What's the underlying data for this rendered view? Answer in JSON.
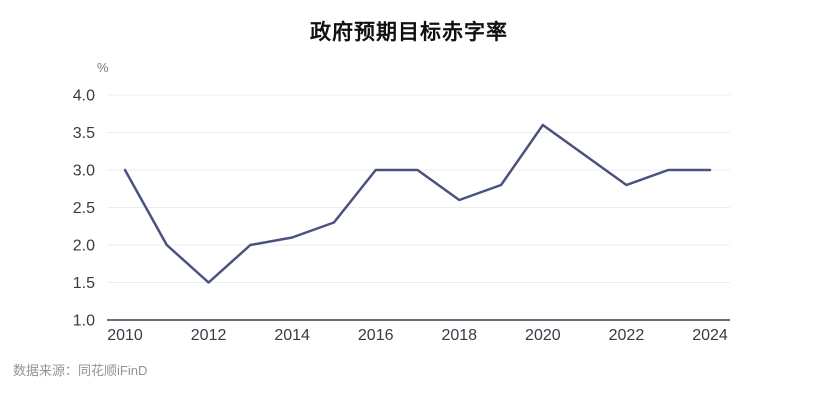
{
  "header": {
    "title": "政府预期目标赤字率"
  },
  "footer": {
    "source": "数据来源：同花顺iFinD"
  },
  "colors": {
    "line": "#4a527f",
    "grid": "#ededf0",
    "axis": "#3d3d4f",
    "tick_text": "#3a3a44",
    "title_text": "#111111",
    "muted_text": "#92929a",
    "background": "#ffffff"
  },
  "chart_data": {
    "type": "line",
    "title": "政府预期目标赤字率",
    "unit_label": "%",
    "xlabel": "",
    "ylabel": "%",
    "x": [
      2010,
      2011,
      2012,
      2013,
      2014,
      2015,
      2016,
      2017,
      2018,
      2019,
      2020,
      2021,
      2022,
      2023,
      2024
    ],
    "series": [
      {
        "name": "政府预期目标赤字率",
        "values": [
          3.0,
          2.0,
          1.5,
          2.0,
          2.1,
          2.3,
          3.0,
          3.0,
          2.6,
          2.8,
          3.6,
          3.2,
          2.8,
          3.0,
          3.0
        ]
      }
    ],
    "ylim": [
      1.0,
      4.0
    ],
    "yticks": [
      1.0,
      1.5,
      2.0,
      2.5,
      3.0,
      3.5,
      4.0
    ],
    "ytick_decimals": 1,
    "xtick_labels": [
      "2010",
      "2012",
      "2014",
      "2016",
      "2018",
      "2020",
      "2022",
      "2024"
    ],
    "grid": true,
    "legend": false,
    "legend_position": "none"
  }
}
